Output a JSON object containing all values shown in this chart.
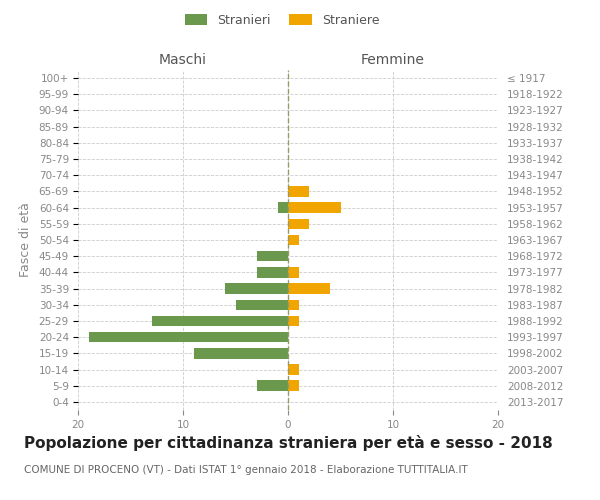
{
  "age_groups": [
    "0-4",
    "5-9",
    "10-14",
    "15-19",
    "20-24",
    "25-29",
    "30-34",
    "35-39",
    "40-44",
    "45-49",
    "50-54",
    "55-59",
    "60-64",
    "65-69",
    "70-74",
    "75-79",
    "80-84",
    "85-89",
    "90-94",
    "95-99",
    "100+"
  ],
  "birth_years": [
    "2013-2017",
    "2008-2012",
    "2003-2007",
    "1998-2002",
    "1993-1997",
    "1988-1992",
    "1983-1987",
    "1978-1982",
    "1973-1977",
    "1968-1972",
    "1963-1967",
    "1958-1962",
    "1953-1957",
    "1948-1952",
    "1943-1947",
    "1938-1942",
    "1933-1937",
    "1928-1932",
    "1923-1927",
    "1918-1922",
    "≤ 1917"
  ],
  "maschi": [
    0,
    3,
    0,
    9,
    19,
    13,
    5,
    6,
    3,
    3,
    0,
    0,
    1,
    0,
    0,
    0,
    0,
    0,
    0,
    0,
    0
  ],
  "femmine": [
    0,
    1,
    1,
    0,
    0,
    1,
    1,
    4,
    1,
    0,
    1,
    2,
    5,
    2,
    0,
    0,
    0,
    0,
    0,
    0,
    0
  ],
  "male_color": "#6a994e",
  "female_color": "#f0a500",
  "grid_color": "#cccccc",
  "bg_color": "#ffffff",
  "text_color": "#888888",
  "title": "Popolazione per cittadinanza straniera per età e sesso - 2018",
  "subtitle": "COMUNE DI PROCENO (VT) - Dati ISTAT 1° gennaio 2018 - Elaborazione TUTTITALIA.IT",
  "xlabel_left": "Maschi",
  "xlabel_right": "Femmine",
  "ylabel_left": "Fasce di età",
  "legend_male": "Stranieri",
  "legend_female": "Straniere",
  "xlim": 20,
  "title_fontsize": 11,
  "subtitle_fontsize": 7.5,
  "label_fontsize": 9,
  "tick_fontsize": 7.5
}
